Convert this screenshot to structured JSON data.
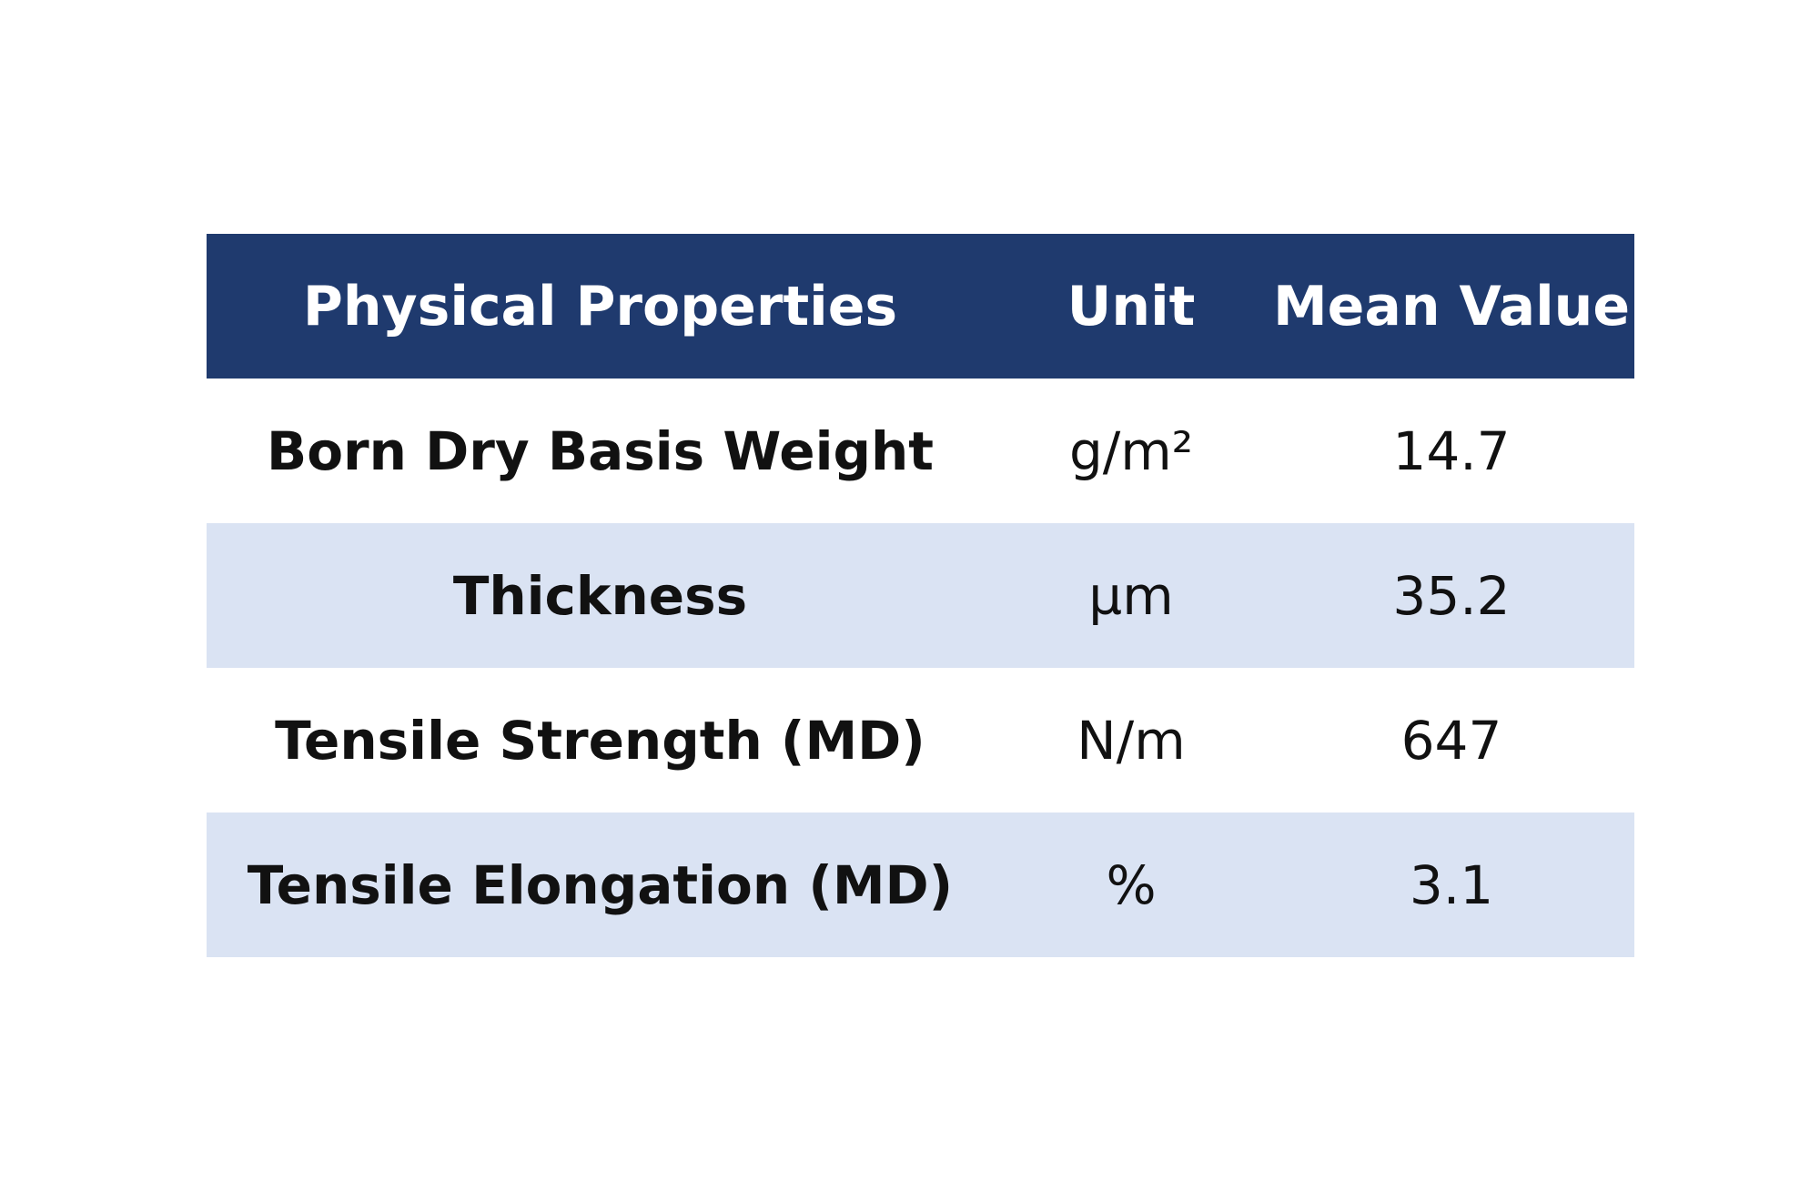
{
  "table": {
    "header": [
      "Physical Properties",
      "Unit",
      "Mean Value"
    ],
    "rows": [
      [
        "Born Dry Basis Weight",
        "g/m²",
        "14.7"
      ],
      [
        "Thickness",
        "µm",
        "35.2"
      ],
      [
        "Tensile Strength (MD)",
        "N/m",
        "647"
      ],
      [
        "Tensile Elongation (MD)",
        "%",
        "3.1"
      ]
    ]
  }
}
